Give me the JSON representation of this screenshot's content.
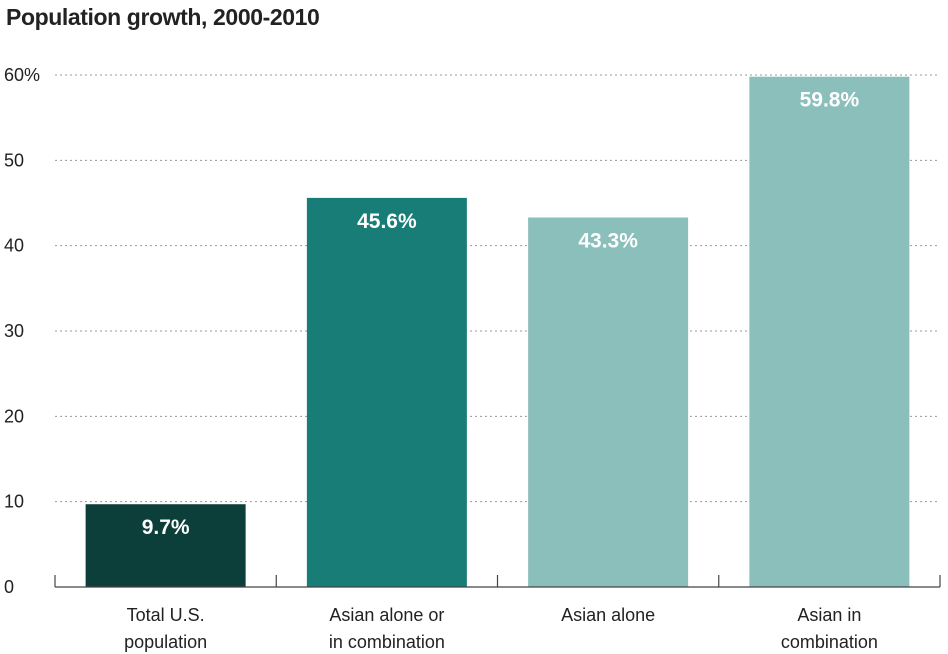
{
  "chart_data": {
    "type": "bar",
    "title": "Population growth, 2000-2010",
    "categories": [
      [
        "Total U.S.",
        "population"
      ],
      [
        "Asian alone or",
        "in combination"
      ],
      [
        "Asian alone"
      ],
      [
        "Asian in",
        "combination"
      ]
    ],
    "values": [
      9.7,
      45.6,
      43.3,
      59.8
    ],
    "data_labels": [
      "9.7%",
      "45.6%",
      "43.3%",
      "59.8%"
    ],
    "bar_colors": [
      "#0d3f3a",
      "#177d76",
      "#8bbfbb",
      "#8bbfbb"
    ],
    "ylim": [
      0,
      60
    ],
    "yticks": [
      0,
      10,
      20,
      30,
      40,
      50,
      60
    ],
    "ytick_labels": [
      "0",
      "10",
      "20",
      "30",
      "40",
      "50",
      "60%"
    ],
    "grid": true
  }
}
